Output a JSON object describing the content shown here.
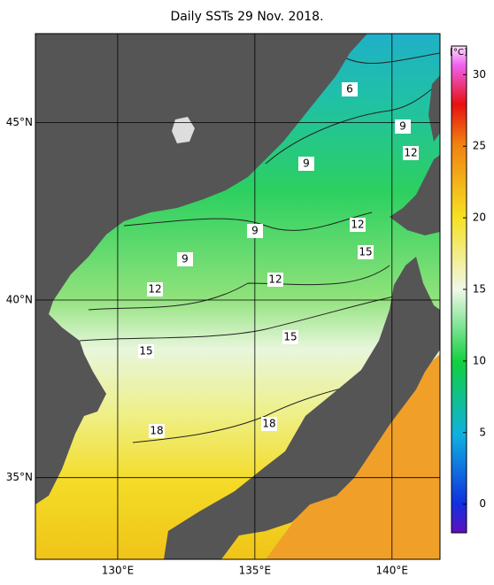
{
  "map": {
    "title": "Daily SSTs 29 Nov. 2018.",
    "xlim": [
      127,
      141.75
    ],
    "ylim": [
      32.7,
      47.5
    ],
    "xticks": [
      {
        "value": 130,
        "label": "130°E"
      },
      {
        "value": 135,
        "label": "135°E"
      },
      {
        "value": 140,
        "label": "140°E"
      }
    ],
    "yticks": [
      {
        "value": 35,
        "label": "35°N"
      },
      {
        "value": 40,
        "label": "40°N"
      },
      {
        "value": 45,
        "label": "45°N"
      }
    ],
    "colorbar": {
      "unit": "[°C]",
      "lim": [
        -2,
        32
      ],
      "ticks": [
        0,
        5,
        10,
        15,
        20,
        25,
        30
      ]
    },
    "contour_labels": [
      6,
      9,
      9,
      12,
      12,
      9,
      15,
      9,
      12,
      12,
      15,
      15,
      18,
      18
    ]
  }
}
